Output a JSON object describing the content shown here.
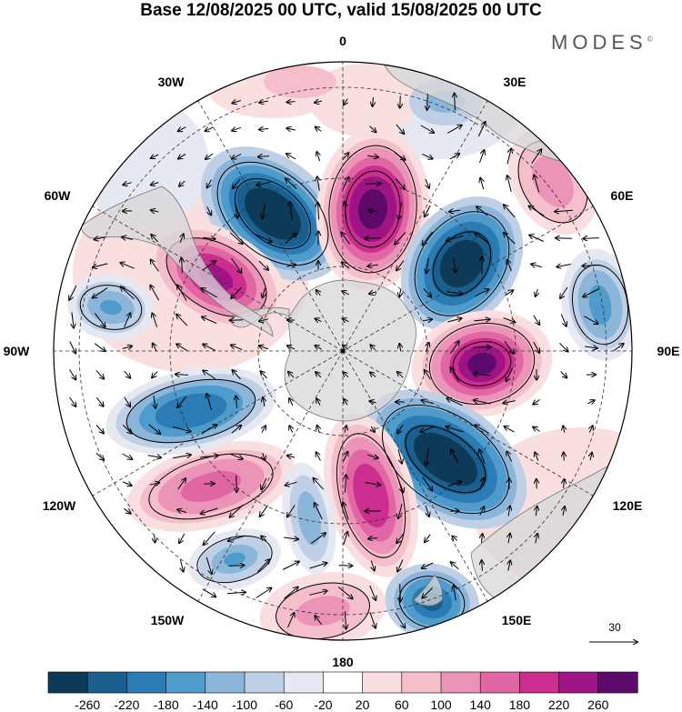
{
  "header": {
    "title": "Base 12/08/2025 00 UTC, valid 15/08/2025 00 UTC",
    "brand": "MODES"
  },
  "map": {
    "projection": "south-polar-stereographic",
    "longitude_labels": {
      "top": "0",
      "top_right": "30E",
      "upper_right": "60E",
      "right": "90E",
      "lower_right": "120E",
      "bottom_right": "150E",
      "bottom": "180",
      "bottom_left": "150W",
      "lower_left": "120W",
      "left": "90W",
      "upper_left": "60W",
      "top_left": "30W"
    },
    "reference_vector": {
      "label": "30"
    },
    "colors": {
      "land": "#d7d7d7",
      "coast": "#777777",
      "grid": "#333333",
      "contour": "#000000"
    },
    "anomaly_centers": [
      {
        "name": "neg-30w-60s",
        "value": -260,
        "sign": "neg"
      },
      {
        "name": "pos-0-70s",
        "value": 240,
        "sign": "pos"
      },
      {
        "name": "neg-30e-65s",
        "value": -260,
        "sign": "neg"
      },
      {
        "name": "pos-45w-55s",
        "value": 220,
        "sign": "pos"
      },
      {
        "name": "neg-70w-40s",
        "value": -140,
        "sign": "neg"
      },
      {
        "name": "pos-90e-55s",
        "value": 260,
        "sign": "pos"
      },
      {
        "name": "neg-75e-30s",
        "value": -140,
        "sign": "neg"
      },
      {
        "name": "pos-45e-35s",
        "value": 100,
        "sign": "pos"
      },
      {
        "name": "neg-115e-55s",
        "value": -260,
        "sign": "neg"
      },
      {
        "name": "pos-165e-55s",
        "value": 200,
        "sign": "pos"
      },
      {
        "name": "neg-155e-30s",
        "value": -200,
        "sign": "neg"
      },
      {
        "name": "pos-170w-35s",
        "value": 100,
        "sign": "pos"
      },
      {
        "name": "neg-145w-35s",
        "value": -120,
        "sign": "neg"
      },
      {
        "name": "pos-125w-45s",
        "value": 140,
        "sign": "pos"
      },
      {
        "name": "neg-105w-55s",
        "value": -180,
        "sign": "neg"
      },
      {
        "name": "neg-170w-55s",
        "value": -100,
        "sign": "neg"
      },
      {
        "name": "pos-15w-40s",
        "value": 60,
        "sign": "pos"
      }
    ]
  },
  "colorbar": {
    "colors": [
      "#0d3a59",
      "#1a5f8e",
      "#2b7bb5",
      "#4f9bcc",
      "#8cb6d9",
      "#bfd0e6",
      "#e6e8f2",
      "#ffffff",
      "#f9dfe0",
      "#f4bfcb",
      "#ec94b8",
      "#e066a4",
      "#cc2e8f",
      "#9e1485",
      "#5c0a6b"
    ],
    "ticks": [
      "-260",
      "-220",
      "-180",
      "-140",
      "-100",
      "-60",
      "-20",
      "20",
      "60",
      "100",
      "140",
      "180",
      "220",
      "260"
    ]
  }
}
